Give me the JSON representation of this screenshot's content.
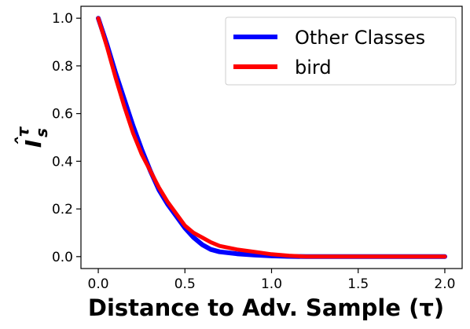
{
  "chart_data": {
    "type": "line",
    "title": "",
    "xlabel": "Distance to Adv. Sample (τ)",
    "ylabel": "Îsτ",
    "ylabel_parts": {
      "base": "I",
      "sub": "s",
      "sup": "τ",
      "hat": "ˆ"
    },
    "xlim": [
      -0.1,
      2.1
    ],
    "ylim": [
      -0.05,
      1.05
    ],
    "xticks": [
      0.0,
      0.5,
      1.0,
      1.5,
      2.0
    ],
    "xtick_labels": [
      "0.0",
      "0.5",
      "1.0",
      "1.5",
      "2.0"
    ],
    "yticks": [
      0.0,
      0.2,
      0.4,
      0.6,
      0.8,
      1.0
    ],
    "ytick_labels": [
      "0.0",
      "0.2",
      "0.4",
      "0.6",
      "0.8",
      "1.0"
    ],
    "grid": false,
    "legend_position": "top-right",
    "series": [
      {
        "name": "Other Classes",
        "color": "#0000ff",
        "x": [
          0.0,
          0.05,
          0.1,
          0.15,
          0.2,
          0.25,
          0.3,
          0.35,
          0.4,
          0.45,
          0.5,
          0.55,
          0.6,
          0.65,
          0.7,
          0.8,
          0.9,
          1.0,
          1.1,
          1.2,
          1.4,
          1.6,
          1.8,
          2.0
        ],
        "y": [
          1.0,
          0.89,
          0.77,
          0.66,
          0.55,
          0.45,
          0.36,
          0.28,
          0.22,
          0.17,
          0.12,
          0.08,
          0.05,
          0.03,
          0.02,
          0.012,
          0.007,
          0.003,
          0.001,
          0.0,
          0.0,
          0.0,
          0.0,
          0.0
        ]
      },
      {
        "name": "bird",
        "color": "#ff0000",
        "x": [
          0.0,
          0.05,
          0.1,
          0.15,
          0.2,
          0.25,
          0.3,
          0.35,
          0.4,
          0.45,
          0.5,
          0.55,
          0.6,
          0.65,
          0.7,
          0.8,
          0.9,
          1.0,
          1.1,
          1.2,
          1.4,
          1.6,
          1.8,
          2.0
        ],
        "y": [
          1.0,
          0.88,
          0.75,
          0.63,
          0.52,
          0.43,
          0.36,
          0.29,
          0.23,
          0.18,
          0.13,
          0.1,
          0.08,
          0.06,
          0.045,
          0.03,
          0.02,
          0.01,
          0.004,
          0.0,
          0.0,
          0.0,
          0.0,
          0.0
        ]
      }
    ]
  }
}
